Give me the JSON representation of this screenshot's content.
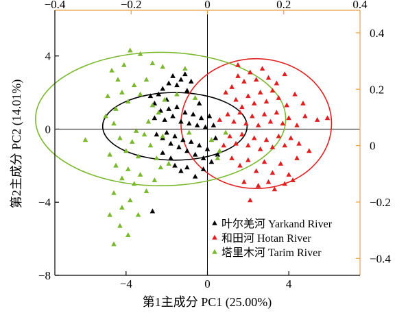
{
  "chart_data": {
    "type": "scatter",
    "xlabel": "第1主成分 PC1 (25.00%)",
    "ylabel": "第2主成分 PC2 (14.01%)",
    "xlim": [
      -7.5,
      7.5
    ],
    "ylim": [
      -8,
      6.5
    ],
    "x_ticks": [
      {
        "v": -4,
        "label": "−4"
      },
      {
        "v": 0,
        "label": "0"
      },
      {
        "v": 4,
        "label": "4"
      }
    ],
    "y_ticks": [
      {
        "v": -8,
        "label": "−8"
      },
      {
        "v": -4,
        "label": "−4"
      },
      {
        "v": 0,
        "label": "0"
      },
      {
        "v": 4,
        "label": "4"
      }
    ],
    "top_axis": {
      "lim": [
        -0.4,
        0.4
      ],
      "ticks": [
        {
          "v": -0.4,
          "label": "−0.4"
        },
        {
          "v": -0.2,
          "label": "−0.2"
        },
        {
          "v": 0,
          "label": "0"
        },
        {
          "v": 0.2,
          "label": "0.2"
        },
        {
          "v": 0.4,
          "label": "0.4"
        }
      ]
    },
    "right_axis": {
      "lim": [
        -0.46,
        0.48
      ],
      "ticks": [
        {
          "v": 0.4,
          "label": "0.4"
        },
        {
          "v": 0.2,
          "label": "0.2"
        },
        {
          "v": 0,
          "label": "0"
        },
        {
          "v": -0.2,
          "label": "−0.2"
        },
        {
          "v": -0.4,
          "label": "−0.4"
        }
      ]
    },
    "grid": false,
    "legend_position": "bottom-right",
    "secondary_axis_color": "#e8a040",
    "series": [
      {
        "name": "叶尔羌河 Yarkand River",
        "color": "#000000",
        "marker": "triangle",
        "ellipse": {
          "cx": -1.6,
          "cy": 0.15,
          "rx": 3.55,
          "ry": 1.85,
          "angle_deg": 68
        },
        "points": [
          [
            -2.8,
            1.8
          ],
          [
            -2.6,
            1.4
          ],
          [
            -2.4,
            1.9
          ],
          [
            -2.2,
            2.2
          ],
          [
            -2.0,
            1.6
          ],
          [
            -1.9,
            2.5
          ],
          [
            -1.7,
            2.9
          ],
          [
            -1.5,
            2.4
          ],
          [
            -1.3,
            2.7
          ],
          [
            -1.1,
            3.0
          ],
          [
            -1.0,
            2.1
          ],
          [
            -0.8,
            2.6
          ],
          [
            -2.6,
            0.6
          ],
          [
            -2.3,
            1.0
          ],
          [
            -2.1,
            0.5
          ],
          [
            -1.9,
            1.1
          ],
          [
            -1.7,
            0.7
          ],
          [
            -1.5,
            1.2
          ],
          [
            -1.3,
            0.4
          ],
          [
            -1.1,
            0.9
          ],
          [
            -0.9,
            0.3
          ],
          [
            -0.7,
            0.8
          ],
          [
            -0.5,
            0.2
          ],
          [
            -0.3,
            0.6
          ],
          [
            -0.1,
            0.1
          ],
          [
            0.1,
            0.7
          ],
          [
            0.3,
            0.2
          ],
          [
            -2.5,
            -0.3
          ],
          [
            -2.2,
            -0.5
          ],
          [
            -2.0,
            -0.2
          ],
          [
            -1.8,
            -0.8
          ],
          [
            -1.6,
            -0.4
          ],
          [
            -1.4,
            -1.0
          ],
          [
            -1.2,
            -0.6
          ],
          [
            -1.0,
            -1.2
          ],
          [
            -0.8,
            -0.7
          ],
          [
            -0.6,
            -1.4
          ],
          [
            -0.4,
            -0.9
          ],
          [
            -0.2,
            -1.6
          ],
          [
            0.0,
            -1.1
          ],
          [
            0.2,
            -1.8
          ],
          [
            0.4,
            -0.5
          ],
          [
            -1.6,
            -2.0
          ],
          [
            -1.3,
            -2.3
          ],
          [
            -1.0,
            -2.1
          ],
          [
            -0.6,
            -2.6
          ],
          [
            -0.2,
            -2.2
          ],
          [
            -1.8,
            -1.6
          ],
          [
            -2.2,
            -1.3
          ],
          [
            -2.7,
            -4.5
          ],
          [
            0.5,
            -1.4
          ],
          [
            -0.4,
            1.4
          ]
        ]
      },
      {
        "name": "和田河 Hotan River",
        "color": "#e02020",
        "marker": "triangle",
        "ellipse": {
          "cx": 2.4,
          "cy": 0.3,
          "rx": 3.7,
          "ry": 3.55,
          "angle_deg": 0
        },
        "points": [
          [
            1.2,
            2.3
          ],
          [
            1.5,
            2.9
          ],
          [
            1.8,
            2.6
          ],
          [
            2.1,
            3.1
          ],
          [
            2.4,
            2.7
          ],
          [
            2.7,
            3.3
          ],
          [
            3.0,
            2.8
          ],
          [
            3.4,
            2.5
          ],
          [
            3.8,
            3.0
          ],
          [
            1.4,
            1.6
          ],
          [
            1.7,
            1.2
          ],
          [
            2.0,
            1.8
          ],
          [
            2.3,
            1.4
          ],
          [
            2.6,
            2.0
          ],
          [
            2.9,
            1.5
          ],
          [
            3.2,
            2.1
          ],
          [
            3.5,
            1.7
          ],
          [
            3.9,
            1.3
          ],
          [
            4.3,
            1.9
          ],
          [
            4.7,
            1.4
          ],
          [
            1.0,
            0.8
          ],
          [
            1.3,
            0.4
          ],
          [
            1.6,
            0.9
          ],
          [
            1.9,
            0.3
          ],
          [
            2.2,
            0.7
          ],
          [
            2.5,
            0.2
          ],
          [
            2.8,
            0.8
          ],
          [
            3.1,
            0.4
          ],
          [
            3.4,
            0.9
          ],
          [
            3.7,
            0.3
          ],
          [
            4.0,
            0.6
          ],
          [
            4.4,
            0.2
          ],
          [
            4.8,
            0.7
          ],
          [
            5.4,
            0.5
          ],
          [
            5.9,
            0.6
          ],
          [
            1.1,
            -0.4
          ],
          [
            1.4,
            -0.8
          ],
          [
            1.7,
            -0.3
          ],
          [
            2.0,
            -0.9
          ],
          [
            2.3,
            -0.5
          ],
          [
            2.6,
            -1.1
          ],
          [
            2.9,
            -0.6
          ],
          [
            3.2,
            -1.0
          ],
          [
            3.5,
            -0.4
          ],
          [
            3.8,
            -0.9
          ],
          [
            4.1,
            -0.5
          ],
          [
            4.5,
            -0.8
          ],
          [
            1.2,
            -1.6
          ],
          [
            1.6,
            -2.0
          ],
          [
            2.0,
            -1.7
          ],
          [
            2.4,
            -2.3
          ],
          [
            2.8,
            -1.8
          ],
          [
            3.2,
            -2.4
          ],
          [
            3.6,
            -1.9
          ],
          [
            4.0,
            -2.5
          ],
          [
            4.4,
            -1.6
          ],
          [
            1.8,
            -2.9
          ],
          [
            2.5,
            -3.1
          ],
          [
            3.0,
            -2.9
          ],
          [
            3.8,
            -3.0
          ],
          [
            4.2,
            -2.8
          ],
          [
            1.5,
            3.5
          ],
          [
            0.6,
            0.5
          ],
          [
            0.8,
            -0.9
          ],
          [
            2.1,
            -3.9
          ],
          [
            3.3,
            -3.3
          ],
          [
            5.0,
            -1.2
          ],
          [
            0.9,
            2.0
          ]
        ]
      },
      {
        "name": "塔里木河 Tarim River",
        "color": "#7ab82e",
        "marker": "triangle",
        "ellipse": {
          "cx": -2.3,
          "cy": 0.55,
          "rx": 6.15,
          "ry": 3.65,
          "angle_deg": 85
        },
        "points": [
          [
            -6.0,
            -0.6
          ],
          [
            -4.7,
            3.2
          ],
          [
            -4.4,
            2.7
          ],
          [
            -4.1,
            3.5
          ],
          [
            -3.8,
            4.3
          ],
          [
            -3.3,
            4.1
          ],
          [
            -2.7,
            3.6
          ],
          [
            -2.2,
            3.4
          ],
          [
            -4.9,
            1.8
          ],
          [
            -4.5,
            1.1
          ],
          [
            -4.2,
            2.0
          ],
          [
            -3.9,
            1.5
          ],
          [
            -3.6,
            2.4
          ],
          [
            -3.3,
            1.9
          ],
          [
            -3.0,
            2.7
          ],
          [
            -2.7,
            1.3
          ],
          [
            -2.4,
            0.9
          ],
          [
            -5.0,
            0.7
          ],
          [
            -4.6,
            0.3
          ],
          [
            -4.3,
            -0.5
          ],
          [
            -4.0,
            -1.2
          ],
          [
            -3.7,
            -0.7
          ],
          [
            -3.4,
            -1.5
          ],
          [
            -3.1,
            -0.3
          ],
          [
            -2.8,
            -0.9
          ],
          [
            -2.5,
            -1.6
          ],
          [
            -2.2,
            -0.4
          ],
          [
            -1.9,
            -1.9
          ],
          [
            -4.8,
            -1.4
          ],
          [
            -4.5,
            -2.0
          ],
          [
            -4.2,
            -2.7
          ],
          [
            -3.9,
            -2.2
          ],
          [
            -3.6,
            -3.0
          ],
          [
            -3.3,
            -2.5
          ],
          [
            -3.0,
            -3.4
          ],
          [
            -2.6,
            -2.8
          ],
          [
            -2.3,
            -2.1
          ],
          [
            -4.6,
            -3.5
          ],
          [
            -4.2,
            -4.3
          ],
          [
            -3.8,
            -3.9
          ],
          [
            -3.4,
            -4.7
          ],
          [
            -4.8,
            -4.7
          ],
          [
            -4.3,
            -5.3
          ],
          [
            -3.9,
            -5.8
          ],
          [
            -4.6,
            -6.3
          ],
          [
            -3.5,
            -0.1
          ],
          [
            -2.9,
            0.4
          ],
          [
            -2.1,
            1.6
          ],
          [
            -1.5,
            1.9
          ],
          [
            -1.1,
            3.3
          ],
          [
            -0.6,
            1.7
          ],
          [
            0.2,
            -0.6
          ],
          [
            0.5,
            -1.6
          ],
          [
            0.9,
            -0.2
          ],
          [
            -0.9,
            -0.2
          ],
          [
            0.6,
            -1.2
          ]
        ]
      }
    ]
  }
}
